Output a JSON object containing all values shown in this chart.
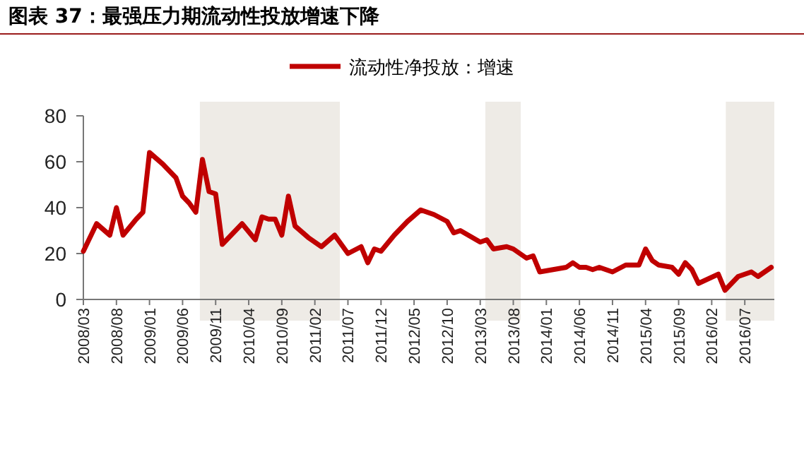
{
  "chart_data": {
    "type": "line",
    "title": "图表 37：最强压力期流动性投放增速下降",
    "x": [
      "2008-03",
      "2008-05",
      "2008-07",
      "2008-08",
      "2008-09",
      "2008-11",
      "2008-12",
      "2009-01",
      "2009-03",
      "2009-04",
      "2009-05",
      "2009-06",
      "2009-07",
      "2009-08",
      "2009-09",
      "2009-10",
      "2009-11",
      "2009-12",
      "2010-03",
      "2010-05",
      "2010-06",
      "2010-07",
      "2010-08",
      "2010-09",
      "2010-10",
      "2010-11",
      "2011-01",
      "2011-03",
      "2011-05",
      "2011-07",
      "2011-09",
      "2011-10",
      "2011-11",
      "2011-12",
      "2012-02",
      "2012-04",
      "2012-06",
      "2012-08",
      "2012-10",
      "2012-11",
      "2012-12",
      "2013-03",
      "2013-04",
      "2013-05",
      "2013-07",
      "2013-08",
      "2013-10",
      "2013-11",
      "2013-12",
      "2014-02",
      "2014-04",
      "2014-05",
      "2014-06",
      "2014-07",
      "2014-08",
      "2014-09",
      "2014-11",
      "2015-01",
      "2015-03",
      "2015-04",
      "2015-05",
      "2015-06",
      "2015-08",
      "2015-09",
      "2015-10",
      "2015-11",
      "2015-12",
      "2016-03",
      "2016-04",
      "2016-06",
      "2016-07",
      "2016-08",
      "2016-09",
      "2016-11"
    ],
    "series": [
      {
        "name": "流动性净投放：增速",
        "color": "#c00000",
        "values": [
          21,
          33,
          28,
          40,
          28,
          35,
          38,
          64,
          59,
          56,
          53,
          45,
          42,
          38,
          61,
          47,
          46,
          24,
          33,
          26,
          36,
          35,
          35,
          28,
          45,
          32,
          27,
          23,
          28,
          20,
          23,
          16,
          22,
          21,
          28,
          34,
          39,
          37,
          34,
          29,
          30,
          25,
          26,
          22,
          23,
          22,
          18,
          19,
          12,
          13,
          14,
          16,
          14,
          14,
          13,
          14,
          12,
          15,
          15,
          22,
          17,
          15,
          14,
          11,
          16,
          13,
          7,
          11,
          4,
          10,
          11,
          12,
          10,
          14
        ]
      }
    ],
    "xlim": [
      "2008-03",
      "2016-11-15"
    ],
    "xticks": [
      {
        "value": "2008-03",
        "label": "2008/03"
      },
      {
        "value": "2008-08",
        "label": "2008/08"
      },
      {
        "value": "2009-01",
        "label": "2009/01"
      },
      {
        "value": "2009-06",
        "label": "2009/06"
      },
      {
        "value": "2009-11",
        "label": "2009/11"
      },
      {
        "value": "2010-04",
        "label": "2010/04"
      },
      {
        "value": "2010-09",
        "label": "2010/09"
      },
      {
        "value": "2011-02",
        "label": "2011/02"
      },
      {
        "value": "2011-07",
        "label": "2011/07"
      },
      {
        "value": "2011-12",
        "label": "2011/12"
      },
      {
        "value": "2012-05",
        "label": "2012/05"
      },
      {
        "value": "2012-10",
        "label": "2012/10"
      },
      {
        "value": "2013-03",
        "label": "2013/03"
      },
      {
        "value": "2013-08",
        "label": "2013/08"
      },
      {
        "value": "2014-01",
        "label": "2014/01"
      },
      {
        "value": "2014-06",
        "label": "2014/06"
      },
      {
        "value": "2014-11",
        "label": "2014/11"
      },
      {
        "value": "2015-04",
        "label": "2015/04"
      },
      {
        "value": "2015-09",
        "label": "2015/09"
      },
      {
        "value": "2016-02",
        "label": "2016/02"
      },
      {
        "value": "2016-07",
        "label": "2016/07"
      }
    ],
    "ylim": [
      0,
      80
    ],
    "yticks": [
      0,
      20,
      40,
      60,
      80
    ],
    "bands": [
      {
        "axis": "x",
        "from": "2009-08-20",
        "to": "2011-05-25",
        "color": "#eeebe6"
      },
      {
        "axis": "x",
        "from": "2013-03-25",
        "to": "2013-09-05",
        "color": "#eeebe6"
      },
      {
        "axis": "x",
        "from": "2016-04-05",
        "to": "2016-11-15",
        "color": "#eeebe6"
      }
    ],
    "legend": "top"
  }
}
